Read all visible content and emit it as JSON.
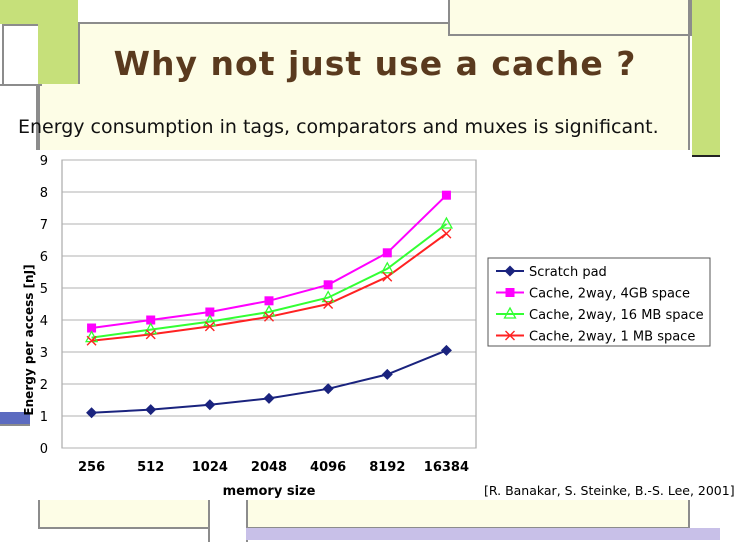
{
  "slide": {
    "title": "Why not just use a cache ?",
    "subtitle": "Energy consumption in tags, comparators and muxes is significant.",
    "credit": "[R. Banakar, S. Steinke, B.-S. Lee, 2001]"
  },
  "colors": {
    "background": "#fdfde6",
    "accent_green": "#c6e07a",
    "frame_grey": "#8c8c8c",
    "bottom_band": "#c8c0e8"
  },
  "chart_data": {
    "type": "line",
    "categories": [
      "256",
      "512",
      "1024",
      "2048",
      "4096",
      "8192",
      "16384"
    ],
    "xlabel": "memory size",
    "ylabel": "Energy per access [nJ]",
    "ylim": [
      0,
      9
    ],
    "yticks": [
      "0",
      "1",
      "2",
      "3",
      "4",
      "5",
      "6",
      "7",
      "8",
      "9"
    ],
    "grid": true,
    "legend_position": "right",
    "series": [
      {
        "name": "Scratch pad",
        "color": "#1a237e",
        "marker": "diamond",
        "values": [
          1.1,
          1.2,
          1.35,
          1.55,
          1.85,
          2.3,
          3.05
        ]
      },
      {
        "name": "Cache, 2way, 4GB space",
        "color": "#ff00ff",
        "marker": "square",
        "values": [
          3.75,
          4.0,
          4.25,
          4.6,
          5.1,
          6.1,
          7.9
        ]
      },
      {
        "name": "Cache, 2way, 16 MB space",
        "color": "#33ff33",
        "marker": "triangle",
        "values": [
          3.45,
          3.7,
          3.95,
          4.25,
          4.7,
          5.6,
          7.0
        ]
      },
      {
        "name": "Cache, 2way, 1 MB space",
        "color": "#ff2222",
        "marker": "x",
        "values": [
          3.35,
          3.55,
          3.8,
          4.1,
          4.5,
          5.35,
          6.7
        ]
      }
    ]
  }
}
